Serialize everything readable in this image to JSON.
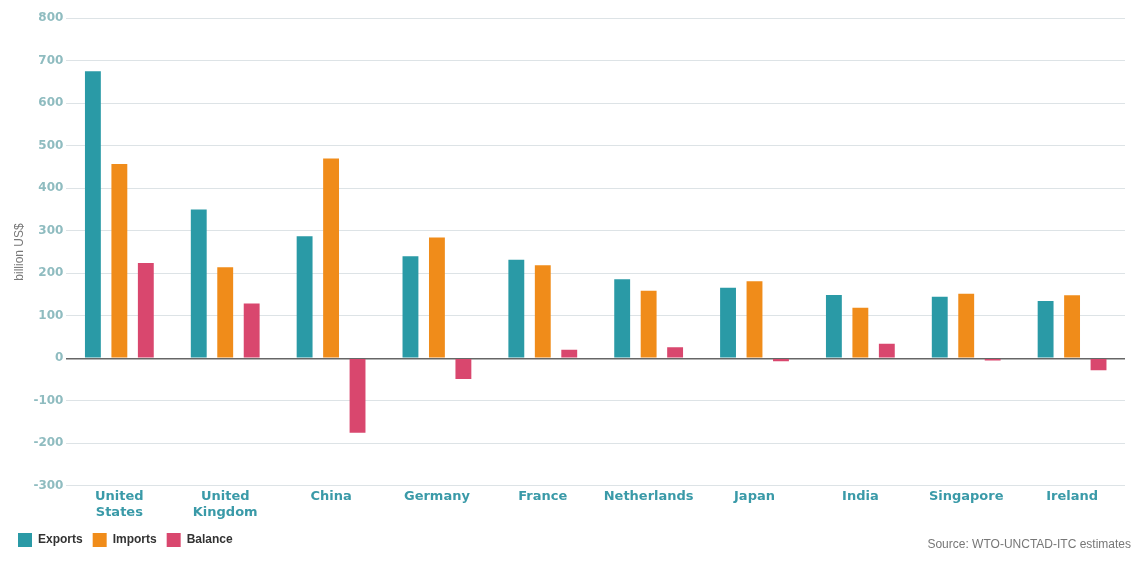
{
  "chart_data": {
    "type": "bar",
    "ylabel": "billion US$",
    "categories": [
      "United States",
      "United Kingdom",
      "China",
      "Germany",
      "France",
      "Netherlands",
      "Japan",
      "India",
      "Singapore",
      "Ireland"
    ],
    "series": [
      {
        "name": "Exports",
        "color": "#2a9aa6",
        "values": [
          675,
          350,
          287,
          240,
          232,
          186,
          166,
          149,
          145,
          135
        ]
      },
      {
        "name": "Imports",
        "color": "#f08c1a",
        "values": [
          457,
          214,
          470,
          284,
          219,
          159,
          181,
          119,
          152,
          148
        ]
      },
      {
        "name": "Balance",
        "color": "#d9476e",
        "values": [
          224,
          129,
          -175,
          -49,
          20,
          26,
          -7,
          34,
          -5,
          -28
        ]
      }
    ],
    "ylim": [
      -300,
      800
    ],
    "yticks": [
      -300,
      -200,
      -100,
      0,
      100,
      200,
      300,
      400,
      500,
      600,
      700,
      800
    ],
    "grid": "y",
    "legend": "bottom left",
    "annotations": [
      "Source: WTO-UNCTAD-ITC estimates"
    ]
  }
}
